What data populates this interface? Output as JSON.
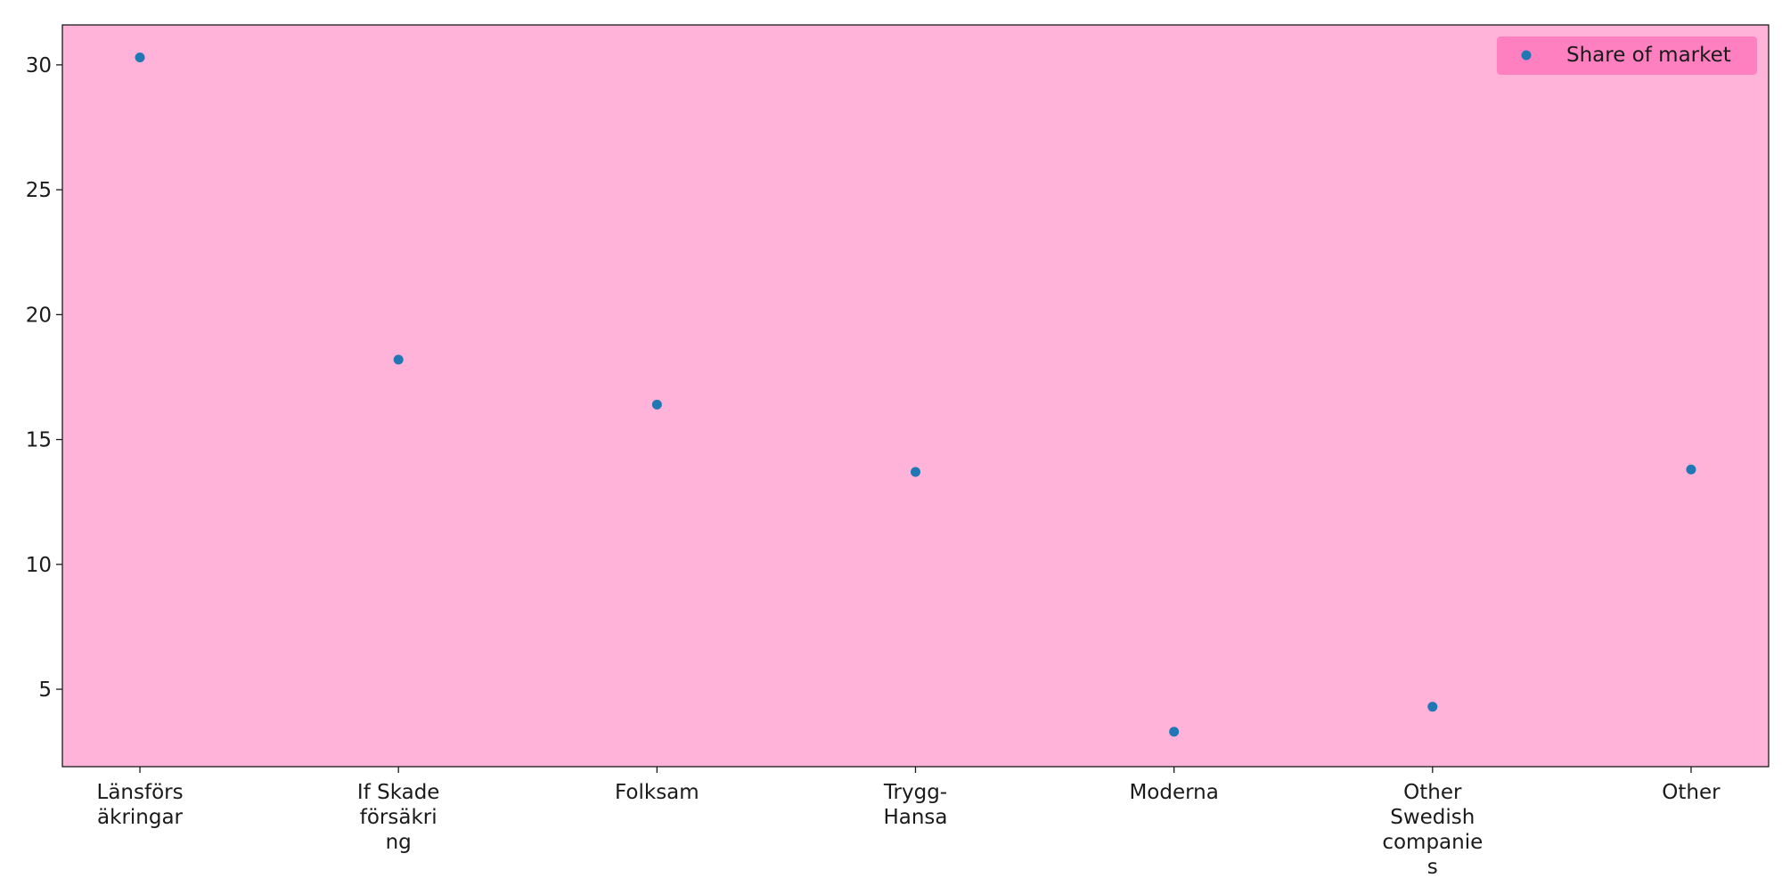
{
  "chart_data": {
    "type": "scatter",
    "title": "",
    "xlabel": "",
    "ylabel": "",
    "categories": [
      [
        "Länsförs",
        "äkringar"
      ],
      [
        "If Skade",
        "försäkri",
        "ng"
      ],
      [
        "Folksam"
      ],
      [
        "Trygg-",
        "Hansa"
      ],
      [
        "Moderna"
      ],
      [
        "Other",
        "Swedish",
        "companie",
        "s"
      ],
      [
        "Other"
      ]
    ],
    "series": [
      {
        "name": "Share of market",
        "values": [
          30.3,
          18.2,
          16.4,
          13.7,
          3.3,
          4.3,
          13.8
        ],
        "color": "#1f77b4"
      }
    ],
    "ylim": [
      1.9,
      31.6
    ],
    "yticks": [
      5,
      10,
      15,
      20,
      25,
      30
    ],
    "grid": false,
    "legend_position": "top-right",
    "plot_background": "#ffb3d9",
    "legend_background": "#ff80c0"
  }
}
